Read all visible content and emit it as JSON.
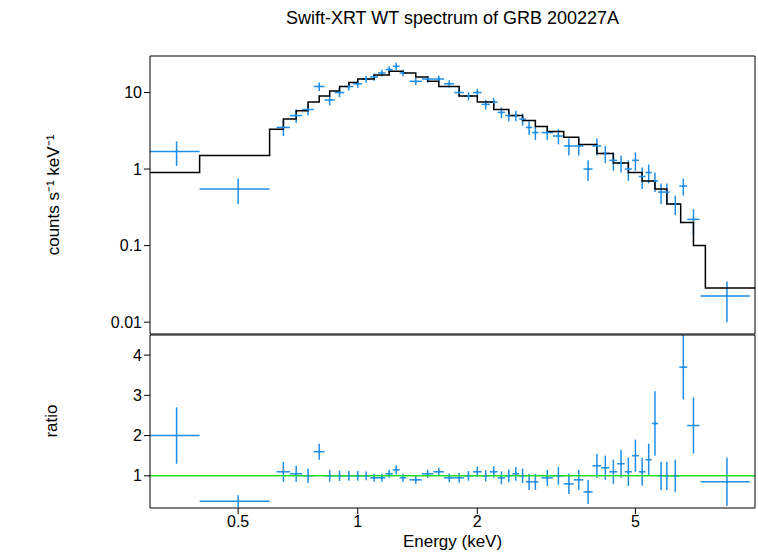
{
  "chart_data": [
    {
      "type": "scatter",
      "title": "Swift-XRT WT spectrum of GRB 200227A",
      "y_label": "counts s⁻¹ keV⁻¹",
      "x": [
        0.35,
        0.5,
        0.65,
        0.7,
        0.75,
        0.8,
        0.85,
        0.9,
        0.95,
        1.0,
        1.05,
        1.1,
        1.15,
        1.2,
        1.25,
        1.3,
        1.4,
        1.5,
        1.6,
        1.7,
        1.8,
        1.9,
        2.0,
        2.1,
        2.2,
        2.3,
        2.4,
        2.5,
        2.6,
        2.7,
        2.8,
        3.0,
        3.2,
        3.4,
        3.6,
        3.8,
        4.0,
        4.2,
        4.4,
        4.6,
        4.8,
        5.0,
        5.2,
        5.4,
        5.6,
        5.8,
        6.0,
        6.3,
        6.6,
        7.0,
        8.5
      ],
      "x_err": [
        0.05,
        0.1,
        0.025,
        0.025,
        0.025,
        0.025,
        0.025,
        0.025,
        0.025,
        0.025,
        0.025,
        0.025,
        0.025,
        0.025,
        0.025,
        0.025,
        0.05,
        0.05,
        0.05,
        0.05,
        0.05,
        0.05,
        0.05,
        0.05,
        0.05,
        0.05,
        0.05,
        0.05,
        0.05,
        0.05,
        0.05,
        0.1,
        0.1,
        0.1,
        0.1,
        0.1,
        0.1,
        0.1,
        0.1,
        0.1,
        0.1,
        0.1,
        0.1,
        0.1,
        0.1,
        0.1,
        0.1,
        0.15,
        0.15,
        0.25,
        1.2
      ],
      "series": [
        {
          "type": "scatter",
          "color": "#1e8ee6",
          "values": [
            1.7,
            0.55,
            3.5,
            5,
            6,
            12,
            8,
            10,
            12,
            13,
            15,
            16,
            18,
            20,
            22,
            18,
            14,
            15,
            15,
            13,
            10,
            9,
            10,
            7,
            7.5,
            5.5,
            5,
            5,
            4.5,
            3.5,
            3,
            3,
            2.7,
            2,
            2,
            1,
            2,
            1.6,
            1.3,
            1.2,
            1,
            1.3,
            0.8,
            0.9,
            0.7,
            0.5,
            0.5,
            0.35,
            0.6,
            0.22,
            0.022
          ],
          "y_err": [
            0.6,
            0.2,
            0.8,
            1,
            1,
            1.5,
            1.2,
            1.3,
            1.4,
            1.5,
            1.6,
            1.7,
            1.8,
            2,
            2.5,
            1.8,
            1.5,
            1.5,
            1.5,
            1.4,
            1.2,
            1.1,
            1.2,
            1,
            1,
            0.9,
            0.8,
            0.8,
            0.8,
            0.7,
            0.6,
            0.6,
            0.6,
            0.5,
            0.5,
            0.3,
            0.5,
            0.4,
            0.35,
            0.3,
            0.3,
            0.35,
            0.25,
            0.25,
            0.2,
            0.15,
            0.15,
            0.1,
            0.15,
            0.08,
            0.012
          ]
        },
        {
          "type": "line",
          "line_style": "step",
          "color": "#000000",
          "x": [
            0.3,
            0.4,
            0.6,
            0.65,
            0.7,
            0.75,
            0.8,
            0.85,
            0.9,
            0.95,
            1.0,
            1.1,
            1.2,
            1.3,
            1.4,
            1.5,
            1.6,
            1.8,
            2.0,
            2.2,
            2.4,
            2.6,
            2.8,
            3.0,
            3.3,
            3.6,
            4.0,
            4.4,
            4.8,
            5.2,
            5.6,
            6.0,
            6.5,
            7.0,
            7.5,
            10
          ],
          "values": [
            0.9,
            1.5,
            3.3,
            4.5,
            5.8,
            7.5,
            9,
            10.5,
            12,
            13.5,
            15,
            17,
            19,
            18,
            16,
            14,
            12,
            9,
            7.5,
            6,
            5,
            4.3,
            3.6,
            3.1,
            2.6,
            2.1,
            1.6,
            1.2,
            0.9,
            0.7,
            0.55,
            0.35,
            0.2,
            0.1,
            0.028,
            0.028
          ]
        }
      ],
      "xlim": [
        0.3,
        10
      ],
      "xticks": [
        0.5,
        1,
        2,
        5
      ],
      "ylim": [
        0.007,
        30
      ],
      "yticks": [
        0.01,
        0.1,
        1,
        10
      ],
      "log": true,
      "tick_labels": "y"
    },
    {
      "type": "scatter",
      "x_label": "Energy (keV)",
      "y_label": "ratio",
      "x": [
        0.35,
        0.5,
        0.65,
        0.7,
        0.75,
        0.8,
        0.85,
        0.9,
        0.95,
        1.0,
        1.05,
        1.1,
        1.15,
        1.2,
        1.25,
        1.3,
        1.4,
        1.5,
        1.6,
        1.7,
        1.8,
        1.9,
        2.0,
        2.1,
        2.2,
        2.3,
        2.4,
        2.5,
        2.6,
        2.7,
        2.8,
        3.0,
        3.2,
        3.4,
        3.6,
        3.8,
        4.0,
        4.2,
        4.4,
        4.6,
        4.8,
        5.0,
        5.2,
        5.4,
        5.6,
        5.8,
        6.0,
        6.3,
        6.6,
        7.0,
        8.5
      ],
      "x_err": [
        0.05,
        0.1,
        0.025,
        0.025,
        0.025,
        0.025,
        0.025,
        0.025,
        0.025,
        0.025,
        0.025,
        0.025,
        0.025,
        0.025,
        0.025,
        0.025,
        0.05,
        0.05,
        0.05,
        0.05,
        0.05,
        0.05,
        0.05,
        0.05,
        0.05,
        0.05,
        0.05,
        0.05,
        0.05,
        0.05,
        0.05,
        0.1,
        0.1,
        0.1,
        0.1,
        0.1,
        0.1,
        0.1,
        0.1,
        0.1,
        0.1,
        0.1,
        0.1,
        0.1,
        0.1,
        0.1,
        0.1,
        0.15,
        0.15,
        0.25,
        1.2
      ],
      "series": [
        {
          "type": "scatter",
          "color": "#1e8ee6",
          "values": [
            2.0,
            0.37,
            1.1,
            1.05,
            1.0,
            1.6,
            1.0,
            1.0,
            1.0,
            1.0,
            1.0,
            0.95,
            0.95,
            1.05,
            1.15,
            0.95,
            0.9,
            1.05,
            1.1,
            0.95,
            0.95,
            1.0,
            1.1,
            1.0,
            1.1,
            0.95,
            1.0,
            1.05,
            1.0,
            0.85,
            0.85,
            0.95,
            1.0,
            0.8,
            0.9,
            0.6,
            1.25,
            1.2,
            1.1,
            1.3,
            1.1,
            1.5,
            1.1,
            1.4,
            2.3,
            1.0,
            1.0,
            1.0,
            3.7,
            2.25,
            0.85
          ],
          "y_err": [
            0.7,
            0.15,
            0.25,
            0.2,
            0.18,
            0.2,
            0.15,
            0.13,
            0.12,
            0.12,
            0.11,
            0.1,
            0.1,
            0.1,
            0.11,
            0.1,
            0.1,
            0.1,
            0.1,
            0.11,
            0.12,
            0.12,
            0.13,
            0.14,
            0.14,
            0.16,
            0.16,
            0.17,
            0.18,
            0.2,
            0.2,
            0.2,
            0.22,
            0.25,
            0.25,
            0.3,
            0.3,
            0.3,
            0.3,
            0.35,
            0.35,
            0.4,
            0.35,
            0.4,
            0.8,
            0.35,
            0.35,
            0.4,
            0.8,
            0.7,
            0.6
          ]
        },
        {
          "type": "line",
          "line_style": "solid",
          "color": "#22dd22",
          "x": [
            0.3,
            10
          ],
          "values": [
            1,
            1
          ]
        }
      ],
      "xlim": [
        0.3,
        10
      ],
      "xticks": [
        0.5,
        1,
        2,
        5
      ],
      "ylim": [
        0.2,
        4.5
      ],
      "yticks": [
        1,
        2,
        3,
        4
      ],
      "log": "x"
    }
  ]
}
